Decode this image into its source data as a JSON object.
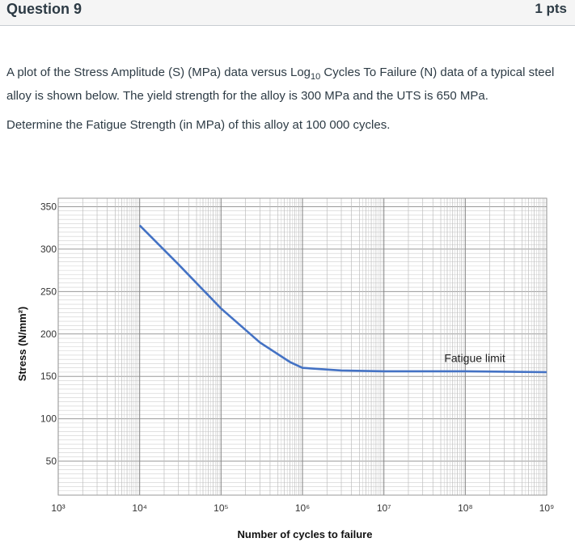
{
  "question": {
    "title": "Question 9",
    "points": "1 pts",
    "text_pre": "A plot of the Stress Amplitude (S) (MPa) data versus Log",
    "text_sub": "10",
    "text_post": " Cycles To Failure (N) data of a typical steel alloy is shown below. The yield strength for the  alloy is 300 MPa and the UTS is 650 MPa.",
    "prompt": "Determine the Fatigue Strength (in MPa) of this alloy at 100 000 cycles."
  },
  "chart_data": {
    "type": "line",
    "xscale": "log",
    "xlim": [
      1000,
      1000000000
    ],
    "ylim": [
      10,
      360
    ],
    "xlabel": "Number of cycles to failure",
    "ylabel": "Stress (N/mm²)",
    "xticks": [
      {
        "value": 1000,
        "label": "10³"
      },
      {
        "value": 10000,
        "label": "10⁴"
      },
      {
        "value": 100000,
        "label": "10⁵"
      },
      {
        "value": 1000000,
        "label": "10⁶"
      },
      {
        "value": 10000000,
        "label": "10⁷"
      },
      {
        "value": 100000000,
        "label": "10⁸"
      },
      {
        "value": 1000000000,
        "label": "10⁹"
      }
    ],
    "yticks": [
      50,
      100,
      150,
      200,
      250,
      300,
      350
    ],
    "grid": true,
    "series": [
      {
        "color": "#4472c4",
        "points": [
          [
            10000,
            328
          ],
          [
            30000,
            282
          ],
          [
            100000,
            230
          ],
          [
            300000,
            190
          ],
          [
            700000,
            167
          ],
          [
            1000000,
            160
          ],
          [
            3000000,
            157
          ],
          [
            10000000,
            156
          ],
          [
            100000000,
            156
          ],
          [
            1000000000,
            155
          ]
        ]
      }
    ],
    "annotations": [
      {
        "text": "Fatigue limit",
        "x": 100000000,
        "y": 163
      }
    ]
  }
}
